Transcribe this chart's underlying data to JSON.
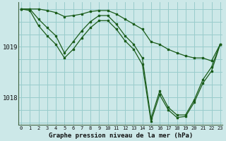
{
  "title": "Graphe pression niveau de la mer (hPa)",
  "background_color": "#cce8e8",
  "grid_color": "#99cccc",
  "line_color": "#1a5c1a",
  "x_ticks": [
    0,
    1,
    2,
    3,
    4,
    5,
    6,
    7,
    8,
    9,
    10,
    11,
    12,
    13,
    14,
    15,
    16,
    17,
    18,
    19,
    20,
    21,
    22,
    23
  ],
  "y_ticks": [
    1018,
    1019
  ],
  "ylim": [
    1017.45,
    1019.88
  ],
  "xlim": [
    -0.3,
    23.3
  ],
  "series": [
    [
      1019.75,
      1019.75,
      1019.75,
      1019.72,
      1019.68,
      1019.6,
      1019.62,
      1019.65,
      1019.7,
      1019.72,
      1019.72,
      1019.65,
      1019.55,
      1019.45,
      1019.35,
      1019.1,
      1019.05,
      1018.95,
      1018.88,
      1018.82,
      1018.78,
      1018.78,
      1018.72,
      1019.05
    ],
    [
      1019.75,
      1019.75,
      1019.55,
      1019.38,
      1019.22,
      1018.88,
      1019.1,
      1019.32,
      1019.5,
      1019.62,
      1019.62,
      1019.45,
      1019.22,
      1019.05,
      1018.78,
      1017.58,
      1018.12,
      1017.8,
      1017.65,
      1017.65,
      1017.95,
      1018.35,
      1018.6,
      1019.05
    ],
    [
      1019.75,
      1019.72,
      1019.42,
      1019.22,
      1019.05,
      1018.78,
      1018.95,
      1019.18,
      1019.38,
      1019.52,
      1019.52,
      1019.35,
      1019.12,
      1018.95,
      1018.65,
      1017.52,
      1018.05,
      1017.75,
      1017.6,
      1017.62,
      1017.9,
      1018.28,
      1018.52,
      1019.05
    ]
  ]
}
